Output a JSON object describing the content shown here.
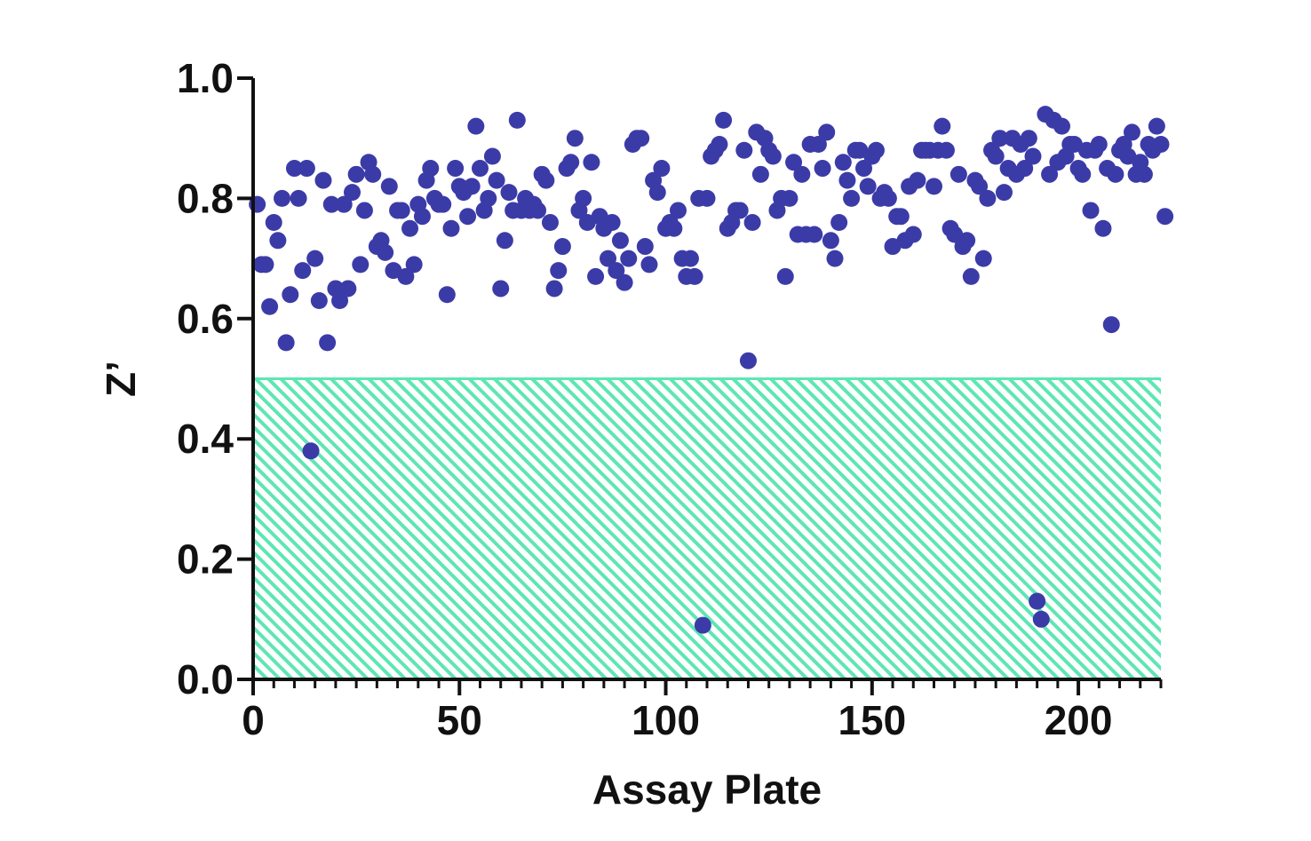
{
  "chart_data": {
    "type": "scatter",
    "title": "",
    "xlabel": "Assay Plate",
    "ylabel": "Z’",
    "xlim": [
      0,
      220
    ],
    "ylim": [
      0,
      1.0
    ],
    "x_ticks": [
      0,
      50,
      100,
      150,
      200
    ],
    "x_tick_labels": [
      "0",
      "50",
      "100",
      "150",
      "200"
    ],
    "y_ticks": [
      0,
      0.2,
      0.4,
      0.6,
      0.8,
      1.0
    ],
    "y_tick_labels": [
      "0.0",
      "0.2",
      "0.4",
      "0.6",
      "0.8",
      "1.0"
    ],
    "x_minor_tick_step": 5,
    "grid": false,
    "legend": "none",
    "marker_color": "#3b3ba8",
    "threshold_region": {
      "y_from": 0,
      "y_to": 0.5,
      "x_from": 0,
      "x_to": 220,
      "pattern": "diagonal-hatch",
      "color": "#5ee6b5"
    },
    "series": [
      {
        "points": [
          [
            1,
            0.79
          ],
          [
            2,
            0.69
          ],
          [
            3,
            0.69
          ],
          [
            4,
            0.62
          ],
          [
            5,
            0.76
          ],
          [
            6,
            0.73
          ],
          [
            7,
            0.8
          ],
          [
            8,
            0.56
          ],
          [
            9,
            0.64
          ],
          [
            10,
            0.85
          ],
          [
            11,
            0.8
          ],
          [
            12,
            0.68
          ],
          [
            13,
            0.85
          ],
          [
            14,
            0.38
          ],
          [
            15,
            0.7
          ],
          [
            16,
            0.63
          ],
          [
            17,
            0.83
          ],
          [
            18,
            0.56
          ],
          [
            19,
            0.79
          ],
          [
            20,
            0.65
          ],
          [
            21,
            0.63
          ],
          [
            22,
            0.79
          ],
          [
            23,
            0.65
          ],
          [
            24,
            0.81
          ],
          [
            25,
            0.84
          ],
          [
            26,
            0.69
          ],
          [
            27,
            0.78
          ],
          [
            28,
            0.86
          ],
          [
            29,
            0.84
          ],
          [
            30,
            0.72
          ],
          [
            31,
            0.73
          ],
          [
            32,
            0.71
          ],
          [
            33,
            0.82
          ],
          [
            34,
            0.68
          ],
          [
            35,
            0.78
          ],
          [
            36,
            0.78
          ],
          [
            37,
            0.67
          ],
          [
            38,
            0.75
          ],
          [
            39,
            0.69
          ],
          [
            40,
            0.79
          ],
          [
            41,
            0.77
          ],
          [
            42,
            0.83
          ],
          [
            43,
            0.85
          ],
          [
            44,
            0.8
          ],
          [
            45,
            0.79
          ],
          [
            46,
            0.79
          ],
          [
            47,
            0.64
          ],
          [
            48,
            0.75
          ],
          [
            49,
            0.85
          ],
          [
            50,
            0.82
          ],
          [
            51,
            0.81
          ],
          [
            52,
            0.77
          ],
          [
            53,
            0.82
          ],
          [
            54,
            0.92
          ],
          [
            55,
            0.85
          ],
          [
            56,
            0.78
          ],
          [
            57,
            0.8
          ],
          [
            58,
            0.87
          ],
          [
            59,
            0.83
          ],
          [
            60,
            0.65
          ],
          [
            61,
            0.73
          ],
          [
            62,
            0.81
          ],
          [
            63,
            0.78
          ],
          [
            64,
            0.93
          ],
          [
            65,
            0.78
          ],
          [
            66,
            0.8
          ],
          [
            67,
            0.78
          ],
          [
            68,
            0.79
          ],
          [
            69,
            0.78
          ],
          [
            70,
            0.84
          ],
          [
            71,
            0.83
          ],
          [
            72,
            0.76
          ],
          [
            73,
            0.65
          ],
          [
            74,
            0.68
          ],
          [
            75,
            0.72
          ],
          [
            76,
            0.85
          ],
          [
            77,
            0.86
          ],
          [
            78,
            0.9
          ],
          [
            79,
            0.78
          ],
          [
            80,
            0.8
          ],
          [
            81,
            0.76
          ],
          [
            82,
            0.86
          ],
          [
            83,
            0.67
          ],
          [
            84,
            0.77
          ],
          [
            85,
            0.75
          ],
          [
            86,
            0.7
          ],
          [
            87,
            0.76
          ],
          [
            88,
            0.68
          ],
          [
            89,
            0.73
          ],
          [
            90,
            0.66
          ],
          [
            91,
            0.7
          ],
          [
            92,
            0.89
          ],
          [
            93,
            0.9
          ],
          [
            94,
            0.9
          ],
          [
            95,
            0.72
          ],
          [
            96,
            0.69
          ],
          [
            97,
            0.83
          ],
          [
            98,
            0.81
          ],
          [
            99,
            0.85
          ],
          [
            100,
            0.75
          ],
          [
            101,
            0.76
          ],
          [
            102,
            0.75
          ],
          [
            103,
            0.78
          ],
          [
            104,
            0.7
          ],
          [
            105,
            0.67
          ],
          [
            106,
            0.7
          ],
          [
            107,
            0.67
          ],
          [
            108,
            0.8
          ],
          [
            109,
            0.09
          ],
          [
            110,
            0.8
          ],
          [
            111,
            0.87
          ],
          [
            112,
            0.88
          ],
          [
            113,
            0.89
          ],
          [
            114,
            0.93
          ],
          [
            115,
            0.75
          ],
          [
            116,
            0.76
          ],
          [
            117,
            0.78
          ],
          [
            118,
            0.78
          ],
          [
            119,
            0.88
          ],
          [
            120,
            0.53
          ],
          [
            121,
            0.76
          ],
          [
            122,
            0.91
          ],
          [
            123,
            0.84
          ],
          [
            124,
            0.9
          ],
          [
            125,
            0.88
          ],
          [
            126,
            0.87
          ],
          [
            127,
            0.78
          ],
          [
            128,
            0.8
          ],
          [
            129,
            0.67
          ],
          [
            130,
            0.8
          ],
          [
            131,
            0.86
          ],
          [
            132,
            0.74
          ],
          [
            133,
            0.84
          ],
          [
            134,
            0.74
          ],
          [
            135,
            0.89
          ],
          [
            136,
            0.74
          ],
          [
            137,
            0.89
          ],
          [
            138,
            0.85
          ],
          [
            139,
            0.91
          ],
          [
            140,
            0.73
          ],
          [
            141,
            0.7
          ],
          [
            142,
            0.76
          ],
          [
            143,
            0.86
          ],
          [
            144,
            0.83
          ],
          [
            145,
            0.8
          ],
          [
            146,
            0.88
          ],
          [
            147,
            0.88
          ],
          [
            148,
            0.85
          ],
          [
            149,
            0.82
          ],
          [
            150,
            0.87
          ],
          [
            151,
            0.88
          ],
          [
            152,
            0.8
          ],
          [
            153,
            0.81
          ],
          [
            154,
            0.8
          ],
          [
            155,
            0.72
          ],
          [
            156,
            0.77
          ],
          [
            157,
            0.77
          ],
          [
            158,
            0.73
          ],
          [
            159,
            0.82
          ],
          [
            160,
            0.74
          ],
          [
            161,
            0.83
          ],
          [
            162,
            0.88
          ],
          [
            163,
            0.88
          ],
          [
            164,
            0.88
          ],
          [
            165,
            0.82
          ],
          [
            166,
            0.88
          ],
          [
            167,
            0.92
          ],
          [
            168,
            0.88
          ],
          [
            169,
            0.75
          ],
          [
            170,
            0.74
          ],
          [
            171,
            0.84
          ],
          [
            172,
            0.72
          ],
          [
            173,
            0.73
          ],
          [
            174,
            0.67
          ],
          [
            175,
            0.83
          ],
          [
            176,
            0.82
          ],
          [
            177,
            0.7
          ],
          [
            178,
            0.8
          ],
          [
            179,
            0.88
          ],
          [
            180,
            0.87
          ],
          [
            181,
            0.9
          ],
          [
            182,
            0.81
          ],
          [
            183,
            0.85
          ],
          [
            184,
            0.9
          ],
          [
            185,
            0.84
          ],
          [
            186,
            0.89
          ],
          [
            187,
            0.85
          ],
          [
            188,
            0.9
          ],
          [
            189,
            0.87
          ],
          [
            190,
            0.13
          ],
          [
            191,
            0.1
          ],
          [
            192,
            0.94
          ],
          [
            193,
            0.84
          ],
          [
            194,
            0.93
          ],
          [
            195,
            0.86
          ],
          [
            196,
            0.92
          ],
          [
            197,
            0.87
          ],
          [
            198,
            0.89
          ],
          [
            199,
            0.89
          ],
          [
            200,
            0.85
          ],
          [
            201,
            0.84
          ],
          [
            202,
            0.88
          ],
          [
            203,
            0.78
          ],
          [
            204,
            0.88
          ],
          [
            205,
            0.89
          ],
          [
            206,
            0.75
          ],
          [
            207,
            0.85
          ],
          [
            208,
            0.59
          ],
          [
            209,
            0.84
          ],
          [
            210,
            0.88
          ],
          [
            211,
            0.89
          ],
          [
            212,
            0.87
          ],
          [
            213,
            0.91
          ],
          [
            214,
            0.84
          ],
          [
            215,
            0.86
          ],
          [
            216,
            0.84
          ],
          [
            217,
            0.89
          ],
          [
            218,
            0.88
          ],
          [
            219,
            0.92
          ],
          [
            220,
            0.89
          ],
          [
            221,
            0.77
          ]
        ]
      }
    ]
  }
}
